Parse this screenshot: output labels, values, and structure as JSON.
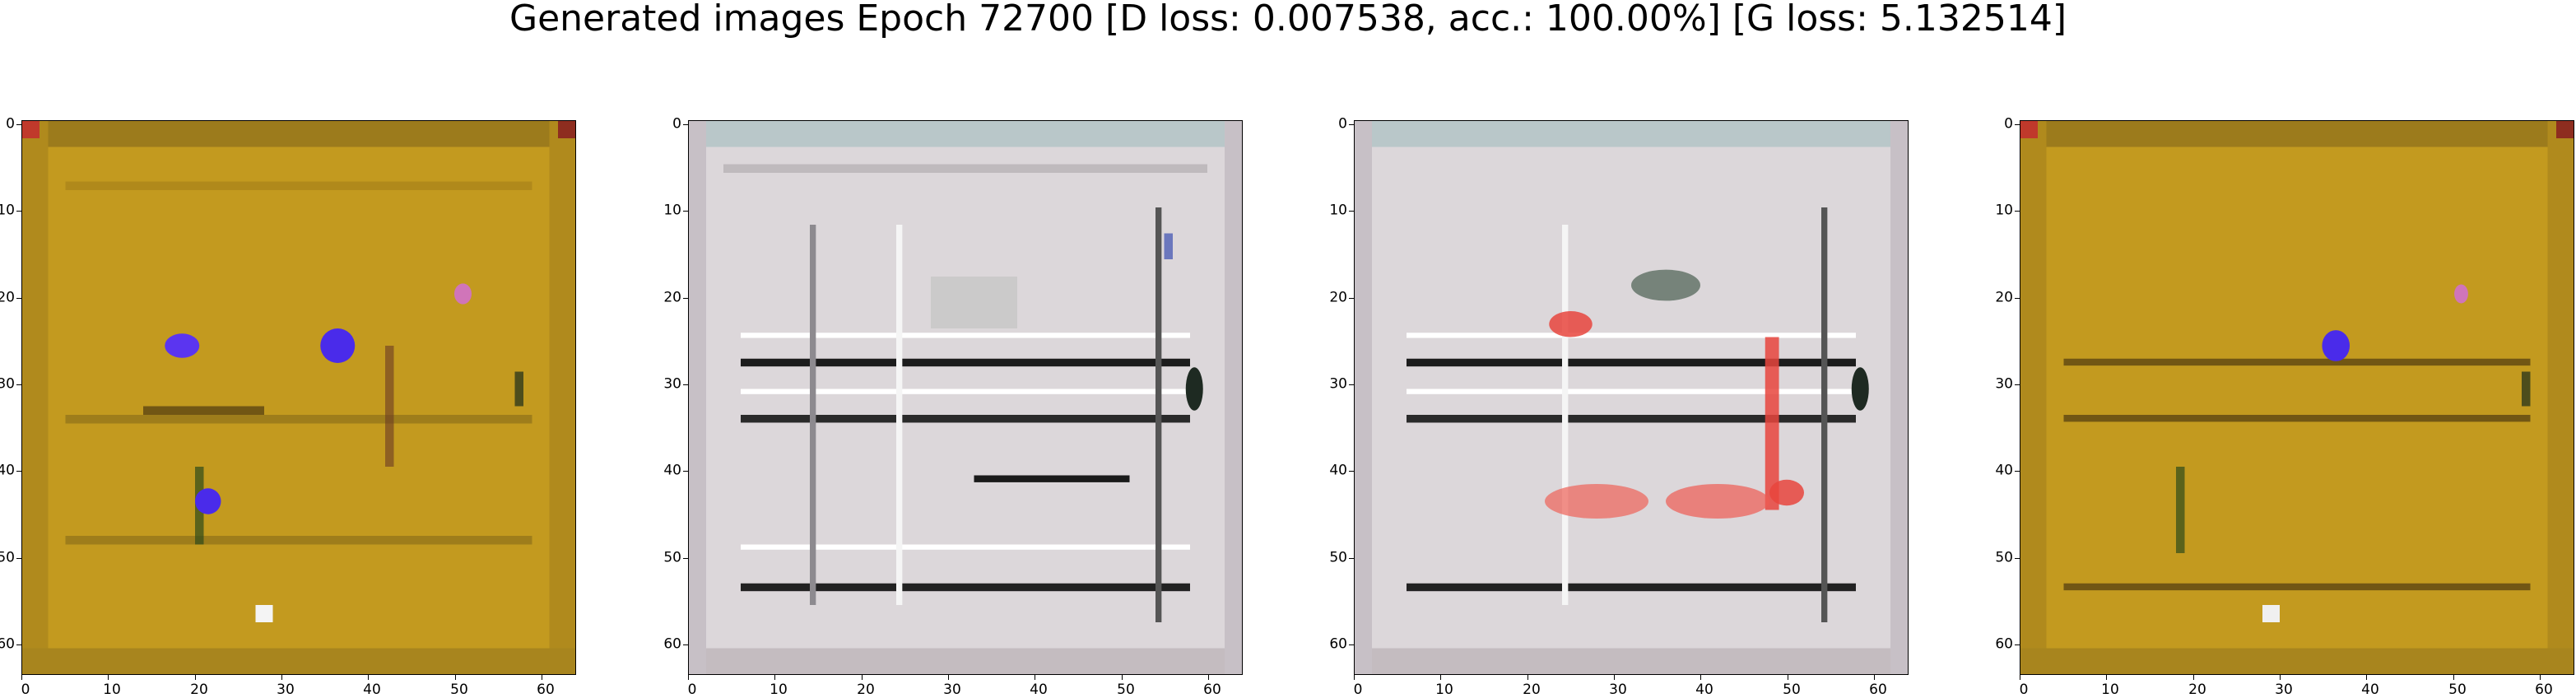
{
  "figure": {
    "title": "Generated images Epoch 72700 [D loss: 0.007538, acc.: 100.00%] [G loss: 5.132514]"
  },
  "axes": {
    "x_ticks": [
      "0",
      "10",
      "20",
      "30",
      "40",
      "50",
      "60"
    ],
    "y_ticks": [
      "0",
      "10",
      "20",
      "30",
      "40",
      "50",
      "60"
    ],
    "range": [
      0,
      64
    ]
  },
  "images": [
    {
      "name": "generated-image-1",
      "palette": "golden",
      "base": "#c39a1f",
      "accent_spots": [
        "#5b35f0",
        "#5b35f0",
        "#5b35f0"
      ]
    },
    {
      "name": "generated-image-2",
      "palette": "gray",
      "base": "#d9d5d8"
    },
    {
      "name": "generated-image-3",
      "palette": "gray-red",
      "base": "#d9d5d8",
      "accent": "#e8453d"
    },
    {
      "name": "generated-image-4",
      "palette": "golden",
      "base": "#c39a1f",
      "accent_spots": [
        "#5b35f0"
      ]
    }
  ]
}
